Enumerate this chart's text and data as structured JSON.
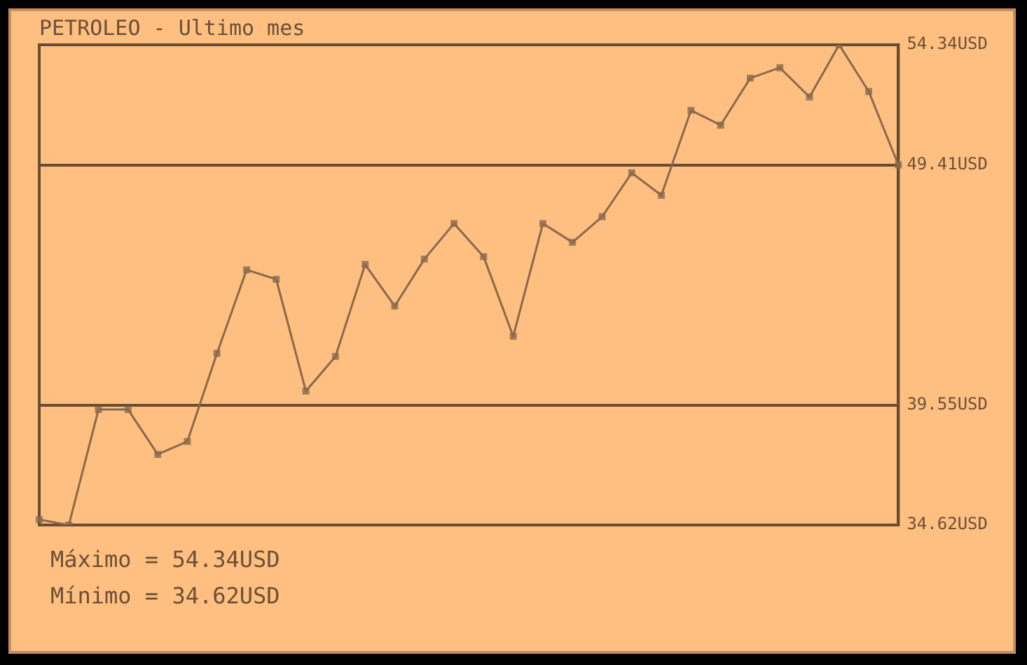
{
  "chart_data": {
    "type": "line",
    "title": "PETROLEO - Ultimo mes",
    "categories": [
      null,
      null,
      null,
      null,
      null,
      null,
      null,
      null,
      null,
      null,
      null,
      null,
      null,
      null,
      null,
      null,
      null,
      null,
      null,
      null,
      null,
      null,
      null,
      null,
      null,
      null,
      null,
      null,
      null,
      null
    ],
    "series": [
      {
        "color": "#8a6a4c",
        "values": [
          34.84,
          34.62,
          39.36,
          39.36,
          37.52,
          38.05,
          41.67,
          45.1,
          44.71,
          40.12,
          41.54,
          45.32,
          43.61,
          45.54,
          47.0,
          45.64,
          42.37,
          47.0,
          46.23,
          47.28,
          49.08,
          48.16,
          51.65,
          51.04,
          52.97,
          53.4,
          52.2,
          54.34,
          52.42,
          49.41
        ]
      }
    ],
    "ylim": [
      34.62,
      54.34
    ],
    "yticks": [
      {
        "value": 34.62,
        "label": "34.62USD"
      },
      {
        "value": 39.55,
        "label": "39.55USD"
      },
      {
        "value": 49.41,
        "label": "49.41USD"
      },
      {
        "value": 54.34,
        "label": "54.34USD"
      }
    ],
    "tick_labels": "y",
    "grid": true,
    "legend": false,
    "marker": "square",
    "line_style": "solid",
    "annotations": [
      "Máximo = 54.34USD",
      "Mínimo = 34.62USD"
    ]
  }
}
